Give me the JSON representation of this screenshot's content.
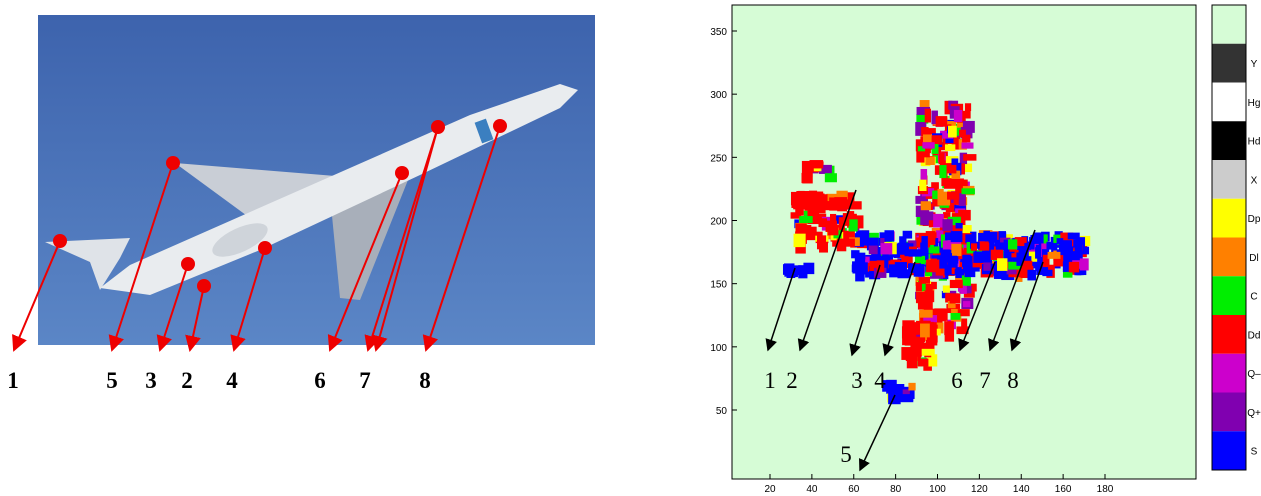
{
  "photo": {
    "labels": [
      "1",
      "5",
      "3",
      "2",
      "4",
      "6",
      "7",
      "8"
    ]
  },
  "plot": {
    "xticks": [
      20,
      40,
      60,
      80,
      100,
      120,
      140,
      160,
      180
    ],
    "yticks": [
      50,
      100,
      150,
      200,
      250,
      300,
      350
    ],
    "labels": [
      "1",
      "2",
      "3",
      "4",
      "6",
      "7",
      "8",
      "5"
    ]
  },
  "colorbar": {
    "labels": [
      "Y",
      "Hg",
      "Hd",
      "X",
      "Dp",
      "Dl",
      "C",
      "Dd",
      "Q–",
      "Q+",
      "S"
    ]
  }
}
